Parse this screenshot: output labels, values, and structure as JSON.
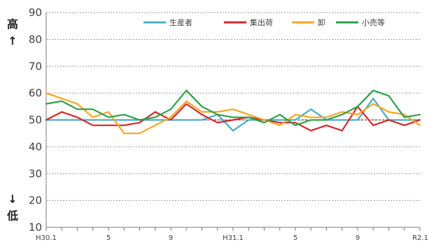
{
  "chart_data": {
    "type": "line",
    "title": "",
    "xlabel": "",
    "ylabel": "",
    "ylim": [
      10,
      90
    ],
    "yticks": [
      10,
      20,
      30,
      40,
      50,
      60,
      70,
      80,
      90
    ],
    "grid": "horizontal-dotted",
    "reference_value": 50,
    "side_labels": {
      "high": "高",
      "up_arrow": "↑",
      "down_arrow": "↓",
      "low": "低"
    },
    "legend_position": "top",
    "x_count": 25,
    "x_tick_labels": [
      {
        "index": 0,
        "label": "H30.1"
      },
      {
        "index": 4,
        "label": "5"
      },
      {
        "index": 8,
        "label": "9"
      },
      {
        "index": 12,
        "label": "H31.1"
      },
      {
        "index": 16,
        "label": "5"
      },
      {
        "index": 20,
        "label": "9"
      },
      {
        "index": 24,
        "label": "R2.1"
      }
    ],
    "series": [
      {
        "name": "生産者",
        "color": "#4BACC6",
        "values": [
          50,
          50,
          50,
          50,
          50,
          50,
          50,
          50,
          50,
          50,
          50,
          52,
          46,
          50,
          50,
          50,
          50,
          54,
          50,
          50,
          50,
          58,
          50,
          50,
          50
        ]
      },
      {
        "name": "集出荷",
        "color": "#D9242B",
        "values": [
          50,
          53,
          51,
          48,
          48,
          48,
          49,
          53,
          50,
          56,
          52,
          49,
          50,
          51,
          50,
          49,
          49,
          46,
          48,
          46,
          55,
          48,
          50,
          48,
          50
        ]
      },
      {
        "name": "卸",
        "color": "#F5A623",
        "values": [
          60,
          58,
          56,
          51,
          53,
          45,
          45,
          48,
          51,
          57,
          53,
          53,
          54,
          52,
          50,
          48,
          52,
          51,
          51,
          53,
          52,
          56,
          53,
          52,
          48
        ]
      },
      {
        "name": "小売等",
        "color": "#2DA04A",
        "values": [
          56,
          57,
          54,
          54,
          51,
          52,
          50,
          51,
          54,
          61,
          55,
          52,
          51,
          51,
          49,
          52,
          48,
          50,
          50,
          52,
          55,
          61,
          59,
          51,
          52
        ]
      }
    ]
  }
}
